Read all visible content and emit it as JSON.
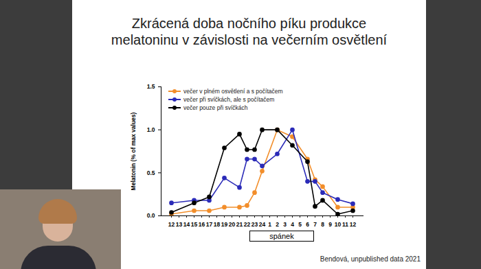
{
  "chart_data": {
    "type": "line",
    "title": "Zkrácená doba nočního píku produkce\nmelatoninu v závislosti na večerním osvětlení",
    "ylabel": "Melatonin (% of max values)",
    "categories": [
      "12",
      "13",
      "14",
      "15",
      "16",
      "17",
      "18",
      "19",
      "20",
      "21",
      "22",
      "23",
      "24",
      "1",
      "2",
      "3",
      "4",
      "5",
      "6",
      "7",
      "8",
      "9",
      "10",
      "11",
      "12"
    ],
    "series": [
      {
        "name": "večer v plném osvětlení a s počítačem",
        "color": "#f28e2b",
        "values": [
          0.02,
          null,
          null,
          0.06,
          null,
          0.06,
          null,
          0.1,
          null,
          0.1,
          0.12,
          0.27,
          0.52,
          null,
          1.0,
          null,
          0.92,
          null,
          0.66,
          0.42,
          0.34,
          null,
          0.1,
          null,
          0.1
        ]
      },
      {
        "name": "večer při svíčkách, ale s počítačem",
        "color": "#2b2bb8",
        "values": [
          0.15,
          null,
          null,
          0.18,
          null,
          0.18,
          null,
          0.44,
          null,
          0.33,
          0.66,
          0.66,
          0.58,
          null,
          0.72,
          null,
          1.0,
          null,
          0.4,
          0.4,
          0.27,
          null,
          0.19,
          null,
          0.14
        ]
      },
      {
        "name": "večer pouze při svíčkách",
        "color": "#000000",
        "values": [
          0.04,
          null,
          null,
          0.15,
          null,
          0.22,
          null,
          0.79,
          null,
          0.95,
          0.77,
          0.77,
          1.0,
          null,
          1.0,
          null,
          0.82,
          null,
          0.63,
          0.11,
          0.18,
          null,
          0.02,
          null,
          0.06
        ]
      }
    ],
    "ylim": [
      0,
      1.5
    ],
    "yticks": [
      {
        "value": 0,
        "label": "0.0"
      },
      {
        "value": 0.5,
        "label": "0.5"
      },
      {
        "value": 1,
        "label": "1.0"
      },
      {
        "value": 1.5,
        "label": "1.5"
      }
    ],
    "grid": false,
    "legend": "top-left",
    "marker": "circle",
    "line_style": "solid",
    "annotations": [
      "spánek",
      "Bendová, unpublished data 2021"
    ]
  }
}
